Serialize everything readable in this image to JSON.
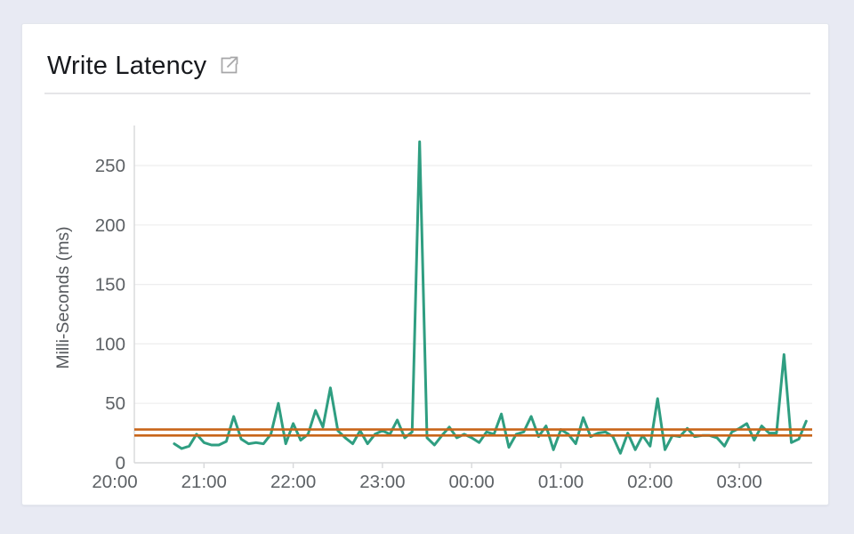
{
  "page": {
    "background_color": "#e8eaf3"
  },
  "card": {
    "title": "Write Latency",
    "title_icon": "external-link-icon"
  },
  "chart_data": {
    "type": "line",
    "title": "Write Latency",
    "xlabel": "",
    "ylabel": "Milli-Seconds (ms)",
    "ylim": [
      0,
      283
    ],
    "y_ticks": [
      0,
      50,
      100,
      150,
      200,
      250
    ],
    "x_tick_labels": [
      "20:00",
      "21:00",
      "22:00",
      "23:00",
      "00:00",
      "01:00",
      "02:00",
      "03:00"
    ],
    "x_start": "20:40",
    "x_end": "03:45",
    "x_interval_minutes": 5,
    "grid": true,
    "legend_position": "none",
    "axis_text_color": "#5d6165",
    "grid_color": "#ededee",
    "axis_line_color": "#d7d8da",
    "series": [
      {
        "name": "Write Latency",
        "color": "#2f9e81",
        "values": [
          16,
          12,
          14,
          24,
          17,
          15,
          15,
          18,
          39,
          20,
          16,
          17,
          16,
          24,
          50,
          16,
          33,
          19,
          24,
          44,
          30,
          63,
          27,
          21,
          16,
          27,
          16,
          24,
          27,
          24,
          36,
          21,
          26,
          270,
          21,
          15,
          23,
          30,
          21,
          24,
          21,
          17,
          26,
          24,
          41,
          13,
          24,
          26,
          39,
          22,
          31,
          11,
          28,
          24,
          16,
          38,
          22,
          25,
          26,
          22,
          8,
          25,
          11,
          23,
          14,
          54,
          11,
          23,
          22,
          29,
          22,
          23,
          23,
          21,
          14,
          26,
          29,
          33,
          19,
          31,
          25,
          25,
          91,
          17,
          20,
          35
        ]
      }
    ],
    "reference_lines": [
      {
        "name": "upper-threshold",
        "value": 28,
        "color": "#c8651a"
      },
      {
        "name": "lower-threshold",
        "value": 23,
        "color": "#c8651a"
      }
    ]
  }
}
